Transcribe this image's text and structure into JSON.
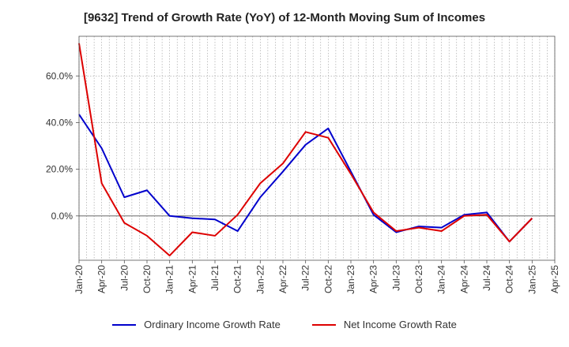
{
  "chart_data": {
    "type": "line",
    "title": "[9632]  Trend of Growth Rate (YoY) of 12-Month Moving Sum of Incomes",
    "xlabel": "",
    "ylabel": "",
    "x_ticks": [
      "Jan-20",
      "Apr-20",
      "Jul-20",
      "Oct-20",
      "Jan-21",
      "Apr-21",
      "Jul-21",
      "Oct-21",
      "Jan-22",
      "Apr-22",
      "Jul-22",
      "Oct-22",
      "Jan-23",
      "Apr-23",
      "Jul-23",
      "Oct-23",
      "Jan-24",
      "Apr-24",
      "Jul-24",
      "Oct-24",
      "Jan-25",
      "Apr-25"
    ],
    "y_ticks": [
      0,
      20,
      40,
      60
    ],
    "y_tick_labels": [
      "0.0%",
      "20.0%",
      "40.0%",
      "60.0%"
    ],
    "ylim": [
      -19,
      77
    ],
    "grid": true,
    "legend_position": "bottom",
    "series": [
      {
        "name": "Ordinary Income Growth Rate",
        "color": "#0000cc",
        "values": [
          43.5,
          29,
          8,
          11,
          0,
          -1,
          -1.5,
          -6.5,
          8,
          19,
          30.5,
          37.5,
          19,
          0.5,
          -7,
          -4.5,
          -5,
          0.5,
          1.5,
          -11,
          -1,
          null
        ]
      },
      {
        "name": "Net Income Growth Rate",
        "color": "#dd0000",
        "values": [
          74,
          14,
          -3,
          -8.5,
          -17,
          -7,
          -8.5,
          0.5,
          14,
          22.5,
          36,
          33.5,
          18,
          1.5,
          -6.5,
          -5,
          -6.5,
          0,
          0.5,
          -11,
          -1,
          null
        ]
      }
    ]
  }
}
